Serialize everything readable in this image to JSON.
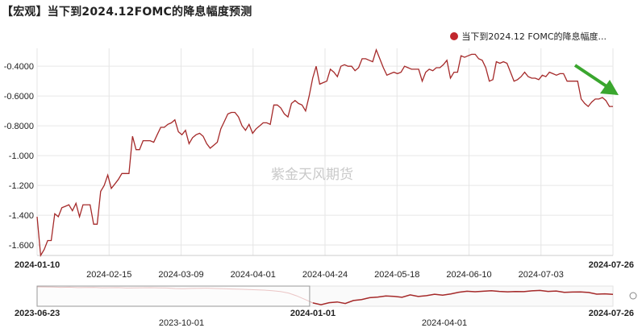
{
  "title": "【宏观】当下到2024.12FOMC的降息幅度预测",
  "watermark": "紫金天风期货",
  "colors": {
    "line": "#a52a2a",
    "legend_dot": "#c1272d",
    "arrow": "#3aa62e",
    "grid": "#e6e6e6"
  },
  "chart_data": {
    "type": "line",
    "series": [
      {
        "name": "当下到2024.12 FOMC的降息幅度...",
        "values": [
          -1.41,
          -1.67,
          -1.63,
          -1.57,
          -1.57,
          -1.39,
          -1.41,
          -1.35,
          -1.34,
          -1.33,
          -1.37,
          -1.32,
          -1.41,
          -1.33,
          -1.33,
          -1.33,
          -1.46,
          -1.46,
          -1.24,
          -1.2,
          -1.13,
          -1.22,
          -1.19,
          -1.16,
          -1.12,
          -1.12,
          -1.12,
          -0.87,
          -0.96,
          -0.96,
          -0.9,
          -0.9,
          -0.9,
          -0.91,
          -0.86,
          -0.81,
          -0.81,
          -0.79,
          -0.78,
          -0.76,
          -0.84,
          -0.86,
          -0.83,
          -0.92,
          -0.88,
          -0.86,
          -0.85,
          -0.87,
          -0.92,
          -0.95,
          -0.93,
          -0.91,
          -0.82,
          -0.77,
          -0.72,
          -0.71,
          -0.71,
          -0.74,
          -0.8,
          -0.83,
          -0.79,
          -0.85,
          -0.82,
          -0.8,
          -0.78,
          -0.78,
          -0.79,
          -0.66,
          -0.66,
          -0.68,
          -0.72,
          -0.74,
          -0.65,
          -0.63,
          -0.65,
          -0.66,
          -0.7,
          -0.6,
          -0.48,
          -0.4,
          -0.52,
          -0.51,
          -0.5,
          -0.42,
          -0.44,
          -0.47,
          -0.4,
          -0.39,
          -0.4,
          -0.4,
          -0.43,
          -0.41,
          -0.35,
          -0.35,
          -0.36,
          -0.37,
          -0.29,
          -0.35,
          -0.41,
          -0.46,
          -0.45,
          -0.44,
          -0.45,
          -0.44,
          -0.4,
          -0.41,
          -0.42,
          -0.42,
          -0.42,
          -0.5,
          -0.44,
          -0.42,
          -0.43,
          -0.41,
          -0.41,
          -0.39,
          -0.36,
          -0.48,
          -0.44,
          -0.44,
          -0.33,
          -0.34,
          -0.33,
          -0.32,
          -0.32,
          -0.35,
          -0.36,
          -0.41,
          -0.5,
          -0.49,
          -0.37,
          -0.38,
          -0.37,
          -0.38,
          -0.44,
          -0.5,
          -0.49,
          -0.47,
          -0.44,
          -0.47,
          -0.48,
          -0.48,
          -0.49,
          -0.46,
          -0.47,
          -0.44,
          -0.45,
          -0.46,
          -0.45,
          -0.45,
          -0.5,
          -0.5,
          -0.5,
          -0.5,
          -0.62,
          -0.65,
          -0.67,
          -0.64,
          -0.62,
          -0.62,
          -0.61,
          -0.63,
          -0.67,
          -0.67
        ]
      }
    ],
    "x_start": "2024-01-10",
    "x_end": "2024-07-26",
    "x_tick_labels": [
      "2024-01-10",
      "2024-02-15",
      "2024-03-09",
      "2024-04-01",
      "2024-04-24",
      "2024-05-18",
      "2024-06-10",
      "2024-07-03",
      "2024-07-26"
    ],
    "y_tick_labels": [
      "-0.4000",
      "-0.6000",
      "-0.8000",
      "-1.000",
      "-1.200",
      "-1.400",
      "-1.600"
    ],
    "y_ticks": [
      -0.4,
      -0.6,
      -0.8,
      -1.0,
      -1.2,
      -1.4,
      -1.6
    ],
    "ylim": [
      -1.67,
      -0.28
    ],
    "grid": true,
    "legend_position": "top-right",
    "annotation": "green arrow pointing down-right"
  },
  "navigator": {
    "start_label": "2023-06-23",
    "end_label": "2024-07-26",
    "tick_labels": [
      "2023-10-01",
      "2024-01-01",
      "2024-04-01"
    ],
    "selected_start": "2024-01-10",
    "selected_end": "2024-07-26",
    "full_series": [
      -0.02,
      -0.03,
      -0.04,
      -0.06,
      -0.05,
      -0.08,
      -0.07,
      -0.06,
      -0.1,
      -0.09,
      -0.08,
      -0.12,
      -0.11,
      -0.1,
      -0.09,
      -0.11,
      -0.12,
      -0.16,
      -0.18,
      -0.15,
      -0.14,
      -0.13,
      -0.16,
      -0.18,
      -0.2,
      -0.22,
      -0.25,
      -0.27,
      -0.3,
      -0.35,
      -0.42,
      -0.55,
      -0.8,
      -1.1,
      -1.41,
      -1.57,
      -1.39,
      -1.33,
      -1.46,
      -1.2,
      -1.12,
      -0.96,
      -0.9,
      -0.81,
      -0.84,
      -0.92,
      -0.71,
      -0.85,
      -0.78,
      -0.66,
      -0.74,
      -0.63,
      -0.48,
      -0.4,
      -0.44,
      -0.4,
      -0.35,
      -0.41,
      -0.45,
      -0.42,
      -0.43,
      -0.36,
      -0.33,
      -0.41,
      -0.38,
      -0.49,
      -0.47,
      -0.46,
      -0.5,
      -0.65,
      -0.62,
      -0.67
    ]
  }
}
